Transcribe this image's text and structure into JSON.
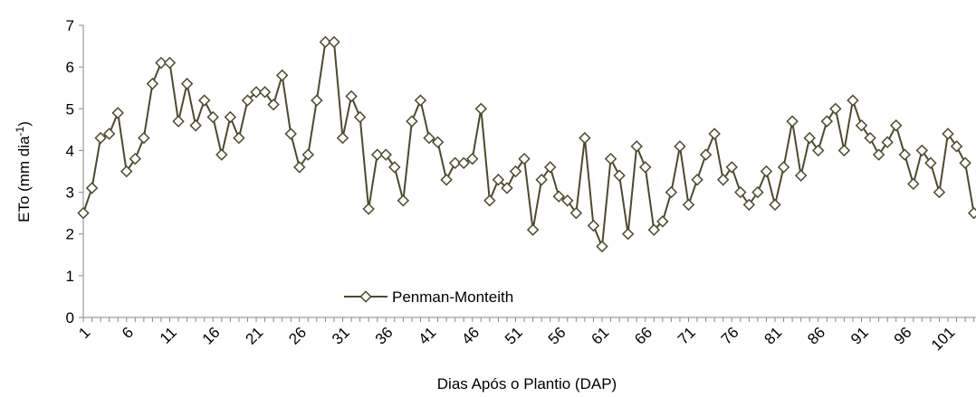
{
  "chart_data": {
    "type": "line",
    "y_label": "ETo (mm dia",
    "y_label_sup": "-1",
    "y_label_end": ")",
    "x_label": "Dias Após o Plantio (DAP)",
    "categories": [
      "1",
      null,
      null,
      null,
      null,
      "6",
      null,
      null,
      null,
      null,
      "11",
      null,
      null,
      null,
      null,
      "16",
      null,
      null,
      null,
      null,
      "21",
      null,
      null,
      null,
      null,
      "26",
      null,
      null,
      null,
      null,
      "31",
      null,
      null,
      null,
      null,
      "36",
      null,
      null,
      null,
      null,
      "41",
      null,
      null,
      null,
      null,
      "46",
      null,
      null,
      null,
      null,
      "51",
      null,
      null,
      null,
      null,
      "56",
      null,
      null,
      null,
      null,
      "61",
      null,
      null,
      null,
      null,
      "66",
      null,
      null,
      null,
      null,
      "71",
      null,
      null,
      null,
      null,
      "76",
      null,
      null,
      null,
      null,
      "81",
      null,
      null,
      null,
      null,
      "86",
      null,
      null,
      null,
      null,
      "91",
      null,
      null,
      null,
      null,
      "96",
      null,
      null,
      null,
      null,
      "101",
      null,
      null,
      null
    ],
    "series": [
      {
        "name": "Penman-Monteith",
        "color": "#4d4a2b",
        "values": [
          2.5,
          3.1,
          4.3,
          4.4,
          4.9,
          3.5,
          3.8,
          4.3,
          5.6,
          6.1,
          6.1,
          4.7,
          5.6,
          4.6,
          5.2,
          4.8,
          3.9,
          4.8,
          4.3,
          5.2,
          5.4,
          5.4,
          5.1,
          5.8,
          4.4,
          3.6,
          3.9,
          5.2,
          6.6,
          6.6,
          4.3,
          5.3,
          4.8,
          2.6,
          3.9,
          3.9,
          3.6,
          2.8,
          4.7,
          5.2,
          4.3,
          4.2,
          3.3,
          3.7,
          3.7,
          3.8,
          5.0,
          2.8,
          3.3,
          3.1,
          3.5,
          3.8,
          2.1,
          3.3,
          3.6,
          2.9,
          2.8,
          2.5,
          4.3,
          2.2,
          1.7,
          3.8,
          3.4,
          2.0,
          4.1,
          3.6,
          2.1,
          2.3,
          3.0,
          4.1,
          2.7,
          3.3,
          3.9,
          4.4,
          3.3,
          3.6,
          3.0,
          2.7,
          3.0,
          3.5,
          2.7,
          3.6,
          4.7,
          3.4,
          4.3,
          4.0,
          4.7,
          5.0,
          4.0,
          5.2,
          4.6,
          4.3,
          3.9,
          4.2,
          4.6,
          3.9,
          3.2,
          4.0,
          3.7,
          3.0,
          4.4,
          4.1,
          3.7,
          2.5
        ]
      }
    ],
    "ylim": [
      0,
      7
    ],
    "yticks": [
      0,
      1,
      2,
      3,
      4,
      5,
      6,
      7
    ],
    "grid": false,
    "legend": "bottom-center"
  }
}
